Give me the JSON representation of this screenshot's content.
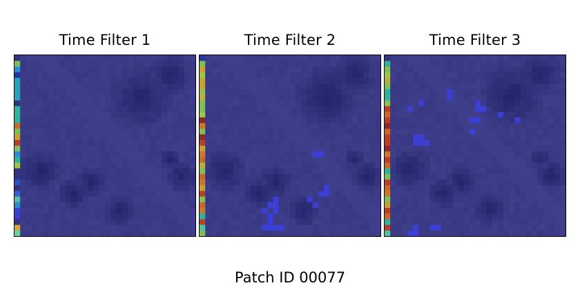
{
  "figure": {
    "caption": "Patch ID 00077"
  },
  "chart_data": {
    "type": "heatmap",
    "grid": [
      32,
      32
    ],
    "colormap": "jet overlay on dark blue",
    "panels": [
      {
        "title": "Time Filter 1",
        "left_column_colors": [
          "#34347e",
          "#7fbf5a",
          "#2a8fcf",
          "#2a35a0",
          "#29a0b9",
          "#29a0b9",
          "#29a0b9",
          "#29a0b9",
          "#34347e",
          "#2fb39c",
          "#2fb39c",
          "#2fb39c",
          "#c8682a",
          "#7fbf5a",
          "#c8a030",
          "#b8402a",
          "#7fbf5a",
          "#2a8fcf",
          "#2fb39c",
          "#9cc64a",
          "#34347e",
          "#34347e",
          "#2a52c0",
          "#34347e",
          "#3c5fd0",
          "#4fc0a0",
          "#2a8fcf",
          "#3a3fcf",
          "#3a3fcf",
          "#34347e",
          "#d8a43a",
          "#6ad0a0"
        ],
        "hot_cells": []
      },
      {
        "title": "Time Filter 2",
        "left_column_colors": [
          "#2a35a0",
          "#7fbf5a",
          "#c8a030",
          "#9cc64a",
          "#c8a030",
          "#c8a030",
          "#8fc050",
          "#b8b03a",
          "#7fbf5a",
          "#7fbf5a",
          "#9cc64a",
          "#8b2a2a",
          "#c87a2a",
          "#7fbf5a",
          "#8b2a2a",
          "#b8402a",
          "#c8a030",
          "#c87a2a",
          "#c8682a",
          "#b8b03a",
          "#7fbf5a",
          "#c8682a",
          "#c87a2a",
          "#c8a030",
          "#b8402a",
          "#7fbf5a",
          "#c8682a",
          "#c87a2a",
          "#2fb39c",
          "#b8402a",
          "#4fc0a0",
          "#7fbf5a"
        ],
        "hot_cells": [
          [
            17,
            20
          ],
          [
            17,
            21
          ],
          [
            23,
            22
          ],
          [
            24,
            21
          ],
          [
            24,
            22
          ],
          [
            25,
            13
          ],
          [
            26,
            12
          ],
          [
            26,
            13
          ],
          [
            27,
            11
          ],
          [
            27,
            13
          ],
          [
            28,
            12
          ],
          [
            29,
            12
          ],
          [
            30,
            11
          ],
          [
            30,
            12
          ],
          [
            30,
            13
          ],
          [
            30,
            14
          ],
          [
            26,
            20
          ],
          [
            25,
            19
          ]
        ]
      },
      {
        "title": "Time Filter 3",
        "left_column_colors": [
          "#34347e",
          "#2fb39c",
          "#7fbf5a",
          "#9cc64a",
          "#b8b03a",
          "#7fbf5a",
          "#2fb39c",
          "#2fb39c",
          "#8fc050",
          "#b8402a",
          "#c8682a",
          "#b8402a",
          "#8b2a2a",
          "#c8682a",
          "#b8402a",
          "#b8402a",
          "#8b2a2a",
          "#c87a2a",
          "#b8402a",
          "#c8682a",
          "#2fb39c",
          "#7fbf5a",
          "#b8402a",
          "#c8682a",
          "#c87a2a",
          "#7fbf5a",
          "#c8a030",
          "#b8402a",
          "#c8682a",
          "#2fb39c",
          "#b8402a",
          "#4fc0a0"
        ],
        "hot_cells": [
          [
            6,
            11
          ],
          [
            7,
            11
          ],
          [
            8,
            6
          ],
          [
            9,
            4
          ],
          [
            8,
            16
          ],
          [
            9,
            16
          ],
          [
            9,
            17
          ],
          [
            11,
            15
          ],
          [
            11,
            16
          ],
          [
            13,
            15
          ],
          [
            14,
            5
          ],
          [
            14,
            6
          ],
          [
            15,
            5
          ],
          [
            15,
            6
          ],
          [
            15,
            7
          ],
          [
            11,
            23
          ],
          [
            10,
            20
          ],
          [
            30,
            5
          ],
          [
            30,
            8
          ],
          [
            30,
            9
          ],
          [
            31,
            4
          ],
          [
            31,
            5
          ]
        ]
      }
    ]
  }
}
